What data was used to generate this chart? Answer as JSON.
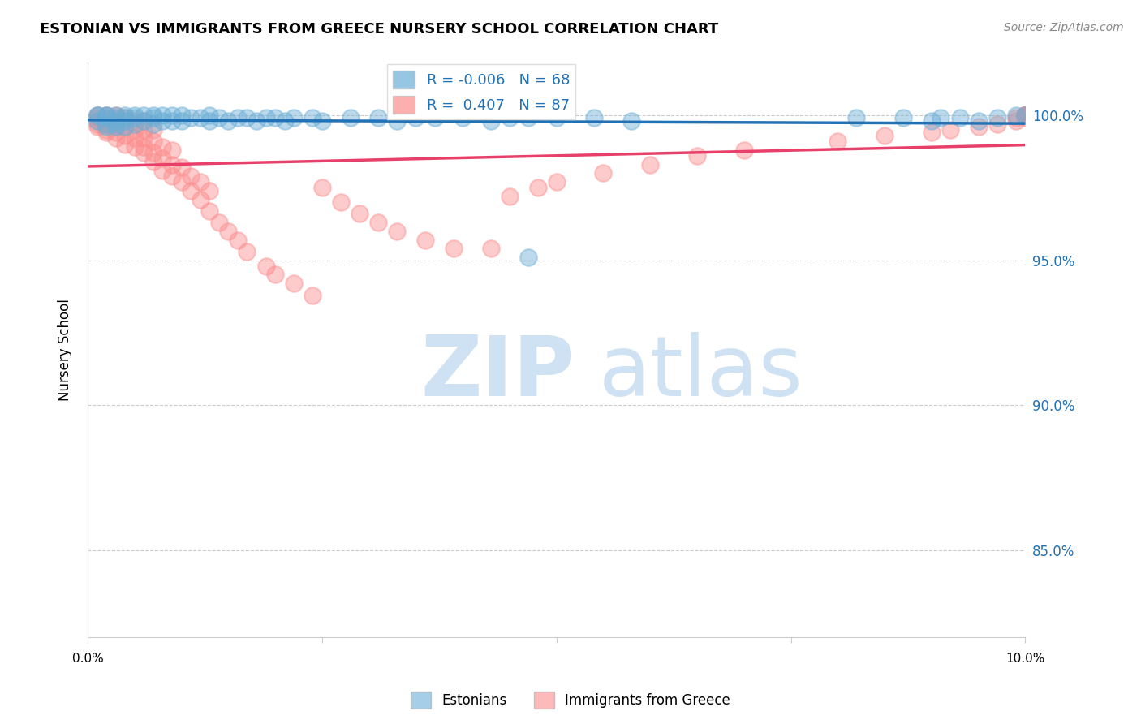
{
  "title": "ESTONIAN VS IMMIGRANTS FROM GREECE NURSERY SCHOOL CORRELATION CHART",
  "source": "Source: ZipAtlas.com",
  "ylabel": "Nursery School",
  "y_ticks": [
    0.85,
    0.9,
    0.95,
    1.0
  ],
  "y_tick_labels": [
    "85.0%",
    "90.0%",
    "95.0%",
    "100.0%"
  ],
  "xmin": 0.0,
  "xmax": 0.1,
  "ymin": 0.82,
  "ymax": 1.018,
  "estonians_R": -0.006,
  "estonians_N": 68,
  "immigrants_R": 0.407,
  "immigrants_N": 87,
  "legend_label_1": "Estonians",
  "legend_label_2": "Immigrants from Greece",
  "color_estonian": "#6baed6",
  "color_immigrant": "#fc8d8d",
  "trendline_estonian": "#2171b5",
  "trendline_immigrant": "#e8406a",
  "estonians_x": [
    0.001,
    0.001,
    0.001,
    0.002,
    0.002,
    0.002,
    0.002,
    0.002,
    0.003,
    0.003,
    0.003,
    0.003,
    0.003,
    0.004,
    0.004,
    0.004,
    0.004,
    0.005,
    0.005,
    0.005,
    0.006,
    0.006,
    0.007,
    0.007,
    0.007,
    0.008,
    0.008,
    0.009,
    0.009,
    0.01,
    0.01,
    0.011,
    0.012,
    0.013,
    0.013,
    0.014,
    0.015,
    0.016,
    0.017,
    0.018,
    0.019,
    0.02,
    0.021,
    0.022,
    0.024,
    0.025,
    0.028,
    0.031,
    0.033,
    0.035,
    0.037,
    0.04,
    0.043,
    0.045,
    0.047,
    0.05,
    0.054,
    0.058,
    0.047,
    0.082,
    0.087,
    0.09,
    0.091,
    0.093,
    0.095,
    0.097,
    0.099,
    0.1
  ],
  "estonians_y": [
    0.998,
    1.0,
    1.0,
    0.996,
    0.997,
    0.999,
    1.0,
    1.0,
    0.996,
    0.997,
    0.998,
    0.999,
    1.0,
    0.996,
    0.998,
    0.999,
    1.0,
    0.997,
    0.999,
    1.0,
    0.998,
    1.0,
    0.997,
    0.999,
    1.0,
    0.998,
    1.0,
    0.998,
    1.0,
    0.998,
    1.0,
    0.999,
    0.999,
    0.998,
    1.0,
    0.999,
    0.998,
    0.999,
    0.999,
    0.998,
    0.999,
    0.999,
    0.998,
    0.999,
    0.999,
    0.998,
    0.999,
    0.999,
    0.998,
    0.999,
    0.999,
    0.999,
    0.998,
    0.999,
    0.999,
    0.999,
    0.999,
    0.998,
    0.951,
    0.999,
    0.999,
    0.998,
    0.999,
    0.999,
    0.998,
    0.999,
    1.0,
    1.0
  ],
  "immigrants_x": [
    0.001,
    0.001,
    0.001,
    0.001,
    0.001,
    0.002,
    0.002,
    0.002,
    0.002,
    0.002,
    0.002,
    0.003,
    0.003,
    0.003,
    0.003,
    0.003,
    0.003,
    0.004,
    0.004,
    0.004,
    0.004,
    0.005,
    0.005,
    0.005,
    0.005,
    0.006,
    0.006,
    0.006,
    0.006,
    0.006,
    0.007,
    0.007,
    0.007,
    0.007,
    0.008,
    0.008,
    0.008,
    0.009,
    0.009,
    0.009,
    0.01,
    0.01,
    0.011,
    0.011,
    0.012,
    0.012,
    0.013,
    0.013,
    0.014,
    0.015,
    0.016,
    0.017,
    0.019,
    0.02,
    0.022,
    0.024,
    0.025,
    0.027,
    0.029,
    0.031,
    0.033,
    0.036,
    0.039,
    0.043,
    0.045,
    0.048,
    0.05,
    0.055,
    0.06,
    0.065,
    0.07,
    0.08,
    0.085,
    0.09,
    0.092,
    0.095,
    0.097,
    0.099,
    0.099,
    0.1,
    0.1,
    0.1,
    0.1,
    0.1,
    0.1,
    0.1,
    0.1
  ],
  "immigrants_y": [
    0.996,
    0.997,
    0.998,
    0.999,
    1.0,
    0.994,
    0.995,
    0.997,
    0.998,
    0.999,
    1.0,
    0.992,
    0.994,
    0.996,
    0.998,
    0.999,
    1.0,
    0.99,
    0.993,
    0.996,
    0.999,
    0.989,
    0.992,
    0.995,
    0.998,
    0.987,
    0.989,
    0.992,
    0.995,
    0.998,
    0.984,
    0.987,
    0.991,
    0.995,
    0.981,
    0.985,
    0.989,
    0.979,
    0.983,
    0.988,
    0.977,
    0.982,
    0.974,
    0.979,
    0.971,
    0.977,
    0.967,
    0.974,
    0.963,
    0.96,
    0.957,
    0.953,
    0.948,
    0.945,
    0.942,
    0.938,
    0.975,
    0.97,
    0.966,
    0.963,
    0.96,
    0.957,
    0.954,
    0.954,
    0.972,
    0.975,
    0.977,
    0.98,
    0.983,
    0.986,
    0.988,
    0.991,
    0.993,
    0.994,
    0.995,
    0.996,
    0.997,
    0.998,
    0.999,
    0.999,
    1.0,
    1.0,
    1.0,
    1.0,
    1.0,
    1.0,
    1.0
  ]
}
